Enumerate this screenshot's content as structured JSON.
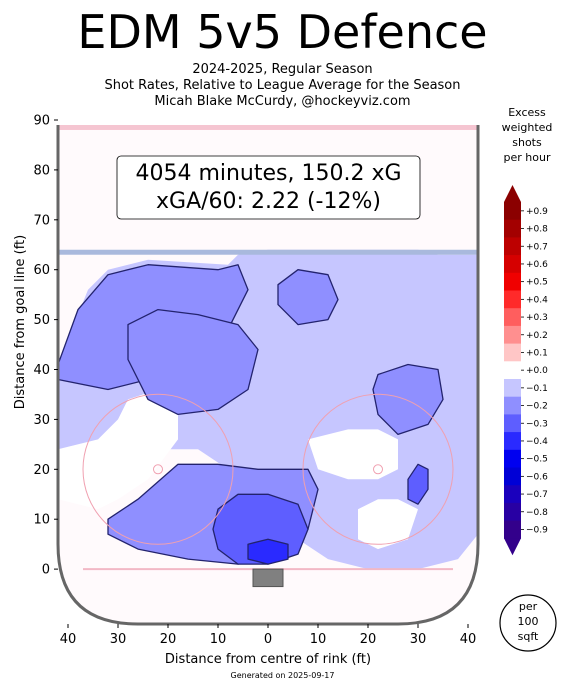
{
  "header": {
    "title": "EDM 5v5 Defence",
    "subtitle_1": "2024-2025, Regular Season",
    "subtitle_2": "Shot Rates, Relative to League Average for the Season",
    "subtitle_3": "Micah Blake McCurdy, @hockeyviz.com"
  },
  "annotation": {
    "line_1": "4054 minutes, 150.2 xG",
    "line_2": "xGA/60: 2.22 (-12%)"
  },
  "footer": {
    "generated": "Generated on 2025-09-17"
  },
  "legend": {
    "title_lines": [
      "Excess",
      "weighted",
      "shots",
      "per hour"
    ],
    "unit_lines": [
      "per",
      "100",
      "sqft"
    ]
  },
  "colors": {
    "rink_outline": "#666666",
    "blue_line": "#a9b9dd",
    "goal_line": "#f2b8c6",
    "faceoff_circle": "#f0a0b0",
    "net": "#808080",
    "contour": "#23236e"
  },
  "chart_data": {
    "type": "heatmap",
    "title": "EDM 5v5 Defence",
    "xlabel": "Distance from centre of rink (ft)",
    "ylabel": "Distance from goal line (ft)",
    "xlim": [
      -42,
      42
    ],
    "ylim": [
      -11,
      90
    ],
    "x_ticks": [
      40,
      30,
      20,
      10,
      0,
      10,
      20,
      30,
      40
    ],
    "y_ticks": [
      0,
      10,
      20,
      30,
      40,
      50,
      60,
      70,
      80,
      90
    ],
    "colorbar": {
      "ticks": [
        "+0.9",
        "+0.8",
        "+0.7",
        "+0.6",
        "+0.5",
        "+0.4",
        "+0.3",
        "+0.2",
        "+0.1",
        "+0.0",
        "−0.1",
        "−0.2",
        "−0.3",
        "−0.4",
        "−0.5",
        "−0.6",
        "−0.7",
        "−0.8",
        "−0.9"
      ],
      "colors": [
        "#8b0000",
        "#a30000",
        "#bd0000",
        "#d60000",
        "#f00000",
        "#ff2a2a",
        "#ff5e5e",
        "#ff8f8f",
        "#ffc6c6",
        "#ffffff",
        "#c6c6ff",
        "#8f8fff",
        "#5e5eff",
        "#2a2aff",
        "#0000f0",
        "#0000d6",
        "#1a00bd",
        "#2800a3",
        "#33008b"
      ]
    },
    "regions": [
      {
        "level": -0.1,
        "points": [
          [
            -42,
            41
          ],
          [
            -36,
            56
          ],
          [
            -32,
            60
          ],
          [
            -24,
            62
          ],
          [
            -8,
            61
          ],
          [
            -6,
            63
          ],
          [
            0,
            64
          ],
          [
            10,
            64
          ],
          [
            30,
            64
          ],
          [
            34,
            63
          ],
          [
            42,
            63
          ],
          [
            42,
            7
          ],
          [
            38,
            2
          ],
          [
            30,
            0
          ],
          [
            20,
            0
          ],
          [
            12,
            2
          ],
          [
            6,
            6
          ],
          [
            0,
            10
          ],
          [
            -4,
            16
          ],
          [
            -8,
            20
          ],
          [
            -14,
            24
          ],
          [
            -20,
            24
          ],
          [
            -28,
            20
          ],
          [
            -34,
            18
          ],
          [
            -42,
            24
          ]
        ]
      },
      {
        "level": 0.0,
        "points": [
          [
            -42,
            24
          ],
          [
            -34,
            26
          ],
          [
            -30,
            30
          ],
          [
            -28,
            34
          ],
          [
            -22,
            36
          ],
          [
            -18,
            32
          ],
          [
            -18,
            26
          ],
          [
            -24,
            18
          ],
          [
            -30,
            14
          ],
          [
            -34,
            12
          ],
          [
            -42,
            14
          ]
        ]
      },
      {
        "level": 0.0,
        "points": [
          [
            22,
            14
          ],
          [
            26,
            14
          ],
          [
            30,
            12
          ],
          [
            28,
            6
          ],
          [
            22,
            4
          ],
          [
            18,
            6
          ],
          [
            18,
            12
          ]
        ]
      },
      {
        "level": 0.0,
        "points": [
          [
            8,
            26
          ],
          [
            16,
            28
          ],
          [
            22,
            28
          ],
          [
            26,
            26
          ],
          [
            26,
            20
          ],
          [
            22,
            18
          ],
          [
            16,
            18
          ],
          [
            10,
            20
          ]
        ]
      },
      {
        "level": -0.2,
        "points": [
          [
            -42,
            41
          ],
          [
            -38,
            52
          ],
          [
            -32,
            59
          ],
          [
            -24,
            61
          ],
          [
            -10,
            60
          ],
          [
            -6,
            61
          ],
          [
            -4,
            56
          ],
          [
            -8,
            48
          ],
          [
            -14,
            42
          ],
          [
            -24,
            38
          ],
          [
            -32,
            36
          ],
          [
            -42,
            38
          ]
        ]
      },
      {
        "level": -0.2,
        "points": [
          [
            2,
            57
          ],
          [
            6,
            60
          ],
          [
            12,
            59
          ],
          [
            14,
            54
          ],
          [
            12,
            50
          ],
          [
            6,
            49
          ],
          [
            2,
            53
          ]
        ]
      },
      {
        "level": -0.2,
        "points": [
          [
            -28,
            49
          ],
          [
            -22,
            52
          ],
          [
            -14,
            51
          ],
          [
            -6,
            49
          ],
          [
            -2,
            44
          ],
          [
            -4,
            36
          ],
          [
            -10,
            32
          ],
          [
            -18,
            31
          ],
          [
            -24,
            34
          ],
          [
            -28,
            42
          ]
        ]
      },
      {
        "level": -0.2,
        "points": [
          [
            22,
            39
          ],
          [
            28,
            41
          ],
          [
            34,
            40
          ],
          [
            35,
            34
          ],
          [
            32,
            29
          ],
          [
            26,
            27
          ],
          [
            22,
            31
          ],
          [
            21,
            36
          ]
        ]
      },
      {
        "level": -0.2,
        "points": [
          [
            -32,
            10
          ],
          [
            -26,
            14
          ],
          [
            -18,
            21
          ],
          [
            -10,
            21
          ],
          [
            -2,
            20
          ],
          [
            8,
            20
          ],
          [
            10,
            16
          ],
          [
            8,
            8
          ],
          [
            2,
            4
          ],
          [
            -6,
            1
          ],
          [
            -16,
            2
          ],
          [
            -26,
            4
          ],
          [
            -32,
            7
          ]
        ]
      },
      {
        "level": -0.3,
        "points": [
          [
            -10,
            12
          ],
          [
            -6,
            15
          ],
          [
            0,
            15
          ],
          [
            6,
            13
          ],
          [
            8,
            8
          ],
          [
            6,
            3
          ],
          [
            0,
            1
          ],
          [
            -6,
            1
          ],
          [
            -10,
            4
          ],
          [
            -11,
            8
          ]
        ]
      },
      {
        "level": -0.3,
        "points": [
          [
            30,
            21
          ],
          [
            32,
            20
          ],
          [
            32,
            16
          ],
          [
            30,
            13
          ],
          [
            28,
            14
          ],
          [
            28,
            18
          ]
        ]
      },
      {
        "level": -0.4,
        "points": [
          [
            -4,
            5
          ],
          [
            0,
            6
          ],
          [
            4,
            5
          ],
          [
            4,
            2
          ],
          [
            0,
            1
          ],
          [
            -4,
            2
          ]
        ]
      }
    ],
    "faceoff_dots": [
      [
        -22,
        20
      ],
      [
        22,
        20
      ]
    ],
    "faceoff_radius": 15
  }
}
